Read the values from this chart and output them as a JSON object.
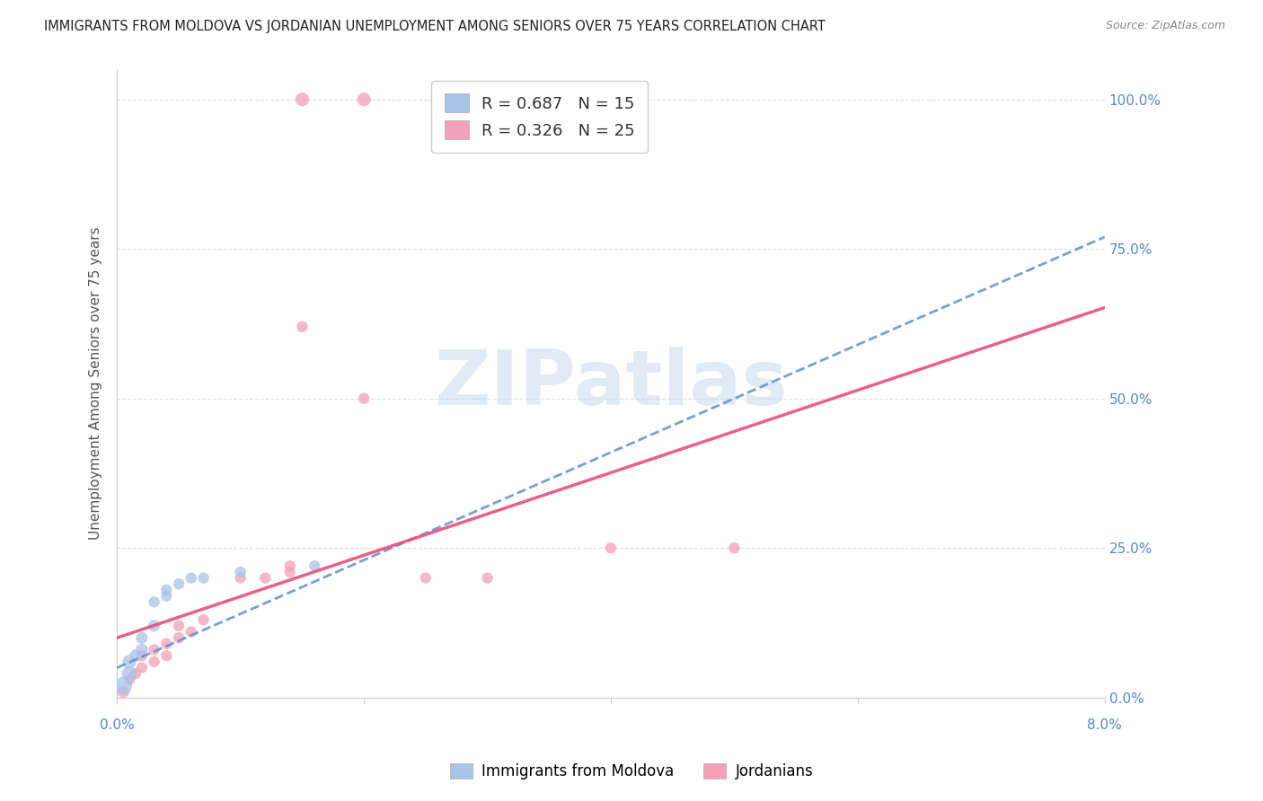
{
  "title": "IMMIGRANTS FROM MOLDOVA VS JORDANIAN UNEMPLOYMENT AMONG SENIORS OVER 75 YEARS CORRELATION CHART",
  "source": "Source: ZipAtlas.com",
  "ylabel": "Unemployment Among Seniors over 75 years",
  "legend1_label": "Immigrants from Moldova",
  "legend2_label": "Jordanians",
  "R_blue": "0.687",
  "N_blue": "15",
  "R_pink": "0.326",
  "N_pink": "25",
  "blue_color": "#a8c4e8",
  "pink_color": "#f4a0b8",
  "blue_line_color": "#6090d0",
  "pink_line_color": "#e8507a",
  "watermark_color": "#c5d8ee",
  "xlim": [
    0.0,
    0.08
  ],
  "ylim": [
    0.0,
    1.05
  ],
  "blue_points": [
    [
      0.0005,
      0.02,
      200
    ],
    [
      0.001,
      0.04,
      150
    ],
    [
      0.001,
      0.06,
      120
    ],
    [
      0.0015,
      0.07,
      100
    ],
    [
      0.002,
      0.08,
      100
    ],
    [
      0.002,
      0.1,
      90
    ],
    [
      0.003,
      0.12,
      90
    ],
    [
      0.003,
      0.16,
      80
    ],
    [
      0.004,
      0.17,
      80
    ],
    [
      0.004,
      0.18,
      80
    ],
    [
      0.005,
      0.19,
      80
    ],
    [
      0.006,
      0.2,
      80
    ],
    [
      0.007,
      0.2,
      80
    ],
    [
      0.01,
      0.21,
      80
    ],
    [
      0.016,
      0.22,
      80
    ]
  ],
  "pink_points": [
    [
      0.0005,
      0.01,
      100
    ],
    [
      0.001,
      0.03,
      80
    ],
    [
      0.0015,
      0.04,
      80
    ],
    [
      0.002,
      0.05,
      80
    ],
    [
      0.002,
      0.07,
      80
    ],
    [
      0.003,
      0.06,
      80
    ],
    [
      0.003,
      0.08,
      80
    ],
    [
      0.004,
      0.09,
      80
    ],
    [
      0.004,
      0.07,
      80
    ],
    [
      0.005,
      0.1,
      80
    ],
    [
      0.005,
      0.12,
      80
    ],
    [
      0.006,
      0.11,
      80
    ],
    [
      0.007,
      0.13,
      80
    ],
    [
      0.01,
      0.2,
      80
    ],
    [
      0.012,
      0.2,
      80
    ],
    [
      0.014,
      0.21,
      80
    ],
    [
      0.014,
      0.22,
      80
    ],
    [
      0.015,
      0.62,
      80
    ],
    [
      0.02,
      0.5,
      80
    ],
    [
      0.025,
      0.2,
      80
    ],
    [
      0.03,
      0.2,
      80
    ],
    [
      0.04,
      0.25,
      80
    ],
    [
      0.015,
      1.0,
      120
    ],
    [
      0.02,
      1.0,
      120
    ],
    [
      0.05,
      0.25,
      80
    ]
  ],
  "blue_trend": [
    0.005,
    0.935
  ],
  "pink_trend": [
    0.02,
    0.82
  ],
  "background_color": "#ffffff",
  "grid_color": "#dedede",
  "ytick_right_labels": [
    "0.0%",
    "25.0%",
    "50.0%",
    "75.0%",
    "100.0%"
  ],
  "ytick_positions": [
    0.0,
    0.25,
    0.5,
    0.75,
    1.0
  ],
  "tick_color": "#5588cc"
}
